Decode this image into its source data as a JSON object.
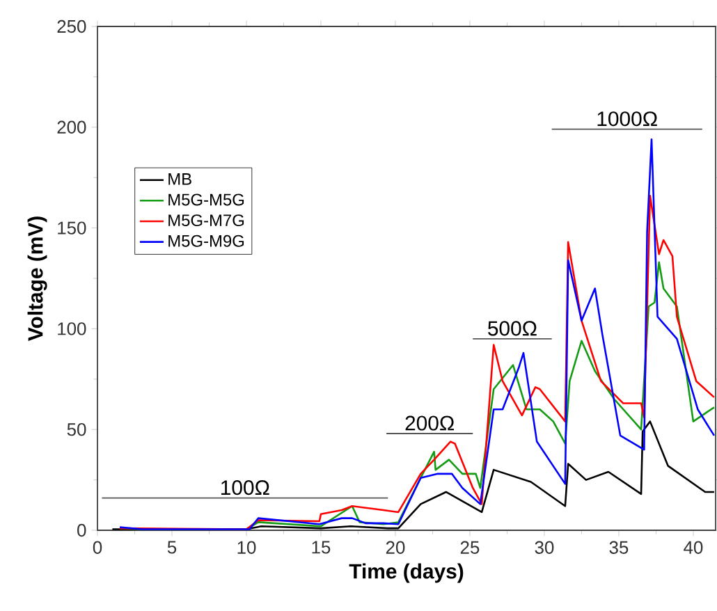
{
  "chart_data": {
    "type": "line",
    "xlabel": "Time (days)",
    "ylabel": "Voltage (mV)",
    "xlim": [
      0,
      41.5
    ],
    "ylim": [
      0,
      250
    ],
    "xticks": [
      0,
      5,
      10,
      15,
      20,
      25,
      30,
      35,
      40
    ],
    "yticks": [
      0,
      50,
      100,
      150,
      200,
      250
    ],
    "grid": false,
    "legend": "left",
    "marker": "none",
    "line_style": "solid",
    "series": [
      {
        "name": "MB",
        "color": "#000000",
        "x": [
          1,
          3,
          10,
          11,
          15,
          17,
          19.5,
          20.2,
          21.7,
          23.4,
          25.8,
          26.6,
          29.1,
          31.4,
          31.6,
          32.8,
          34.3,
          36.5,
          36.6,
          37.1,
          38.3,
          40.8,
          41.4
        ],
        "values": [
          0.5,
          0.5,
          0.5,
          2,
          1,
          2,
          1,
          1,
          13,
          19,
          9,
          30,
          24,
          12,
          33,
          25,
          29,
          18,
          49,
          54,
          32,
          19,
          19
        ]
      },
      {
        "name": "M5G-M5G",
        "color": "#139b13",
        "x": [
          1.5,
          3,
          10,
          10.8,
          15,
          17.1,
          17.6,
          19.2,
          20.2,
          21.7,
          22.6,
          22.7,
          23.6,
          24.5,
          25.4,
          25.7,
          26.6,
          27.9,
          28.8,
          29.7,
          30.6,
          31.4,
          31.7,
          32.5,
          33.4,
          34.7,
          36.5,
          37.0,
          37.4,
          37.7,
          38.0,
          38.9,
          40.0,
          41.4
        ],
        "values": [
          1,
          0.5,
          0.5,
          4,
          2,
          12,
          4,
          3,
          4,
          26,
          39,
          30,
          35,
          28,
          28,
          21,
          70,
          82,
          60,
          60,
          54,
          43,
          74,
          94,
          79,
          65,
          50,
          111,
          113,
          133,
          120,
          111,
          54,
          61
        ]
      },
      {
        "name": "M5G-M7G",
        "color": "#ff0000",
        "x": [
          1.5,
          10,
          10.8,
          14.9,
          15.0,
          16.4,
          17.1,
          19.2,
          20.2,
          21.7,
          22.6,
          23.7,
          24.0,
          25.2,
          25.8,
          26.6,
          27.2,
          28.5,
          29.4,
          29.7,
          31.4,
          31.6,
          32.5,
          33.8,
          35.3,
          36.5,
          36.7,
          37.1,
          37.7,
          38.0,
          38.6,
          38.9,
          40.2,
          41.4
        ],
        "values": [
          1,
          0.5,
          5,
          4.5,
          8,
          10,
          12,
          10,
          9,
          28,
          35,
          44,
          43,
          21,
          13,
          92,
          74,
          57,
          71,
          70,
          54,
          143,
          104,
          74,
          63,
          63,
          56,
          166,
          137,
          144,
          136,
          106,
          74,
          66
        ]
      },
      {
        "name": "M5G-M9G",
        "color": "#0000ff",
        "x": [
          1.5,
          3,
          10.2,
          10.8,
          14.9,
          16.4,
          17.1,
          18,
          19.2,
          20.2,
          21.7,
          22.8,
          23.8,
          24.5,
          25.7,
          26.6,
          27.2,
          28.3,
          28.6,
          29.5,
          31.4,
          31.6,
          32.5,
          33.4,
          33.9,
          35.1,
          36.7,
          36.9,
          37.2,
          37.6,
          38.9,
          40.3,
          41.4
        ],
        "values": [
          1.5,
          0.5,
          0.5,
          6,
          3,
          6,
          6,
          3.5,
          3.5,
          3,
          26,
          28,
          28,
          21,
          13,
          60,
          60,
          81,
          88,
          44,
          23,
          134,
          104,
          120,
          97,
          47,
          40,
          148,
          194,
          106,
          95,
          60,
          47
        ]
      },
      {
        "color": "#555555",
        "x": [
          0.3,
          19.5
        ],
        "values": [
          16,
          16
        ]
      },
      {
        "color": "#555555",
        "x": [
          19.4,
          25.2
        ],
        "values": [
          48,
          48
        ]
      },
      {
        "color": "#555555",
        "x": [
          25.2,
          30.5
        ],
        "values": [
          95,
          95
        ]
      },
      {
        "color": "#555555",
        "x": [
          30.5,
          40.6
        ],
        "values": [
          199,
          199
        ]
      }
    ],
    "annotations": [
      {
        "text": "100Ω",
        "x": 9.9,
        "y": 16
      },
      {
        "text": "200Ω",
        "x": 22.3,
        "y": 48
      },
      {
        "text": "500Ω",
        "x": 27.85,
        "y": 95
      },
      {
        "text": "1000Ω",
        "x": 35.55,
        "y": 199
      }
    ]
  }
}
